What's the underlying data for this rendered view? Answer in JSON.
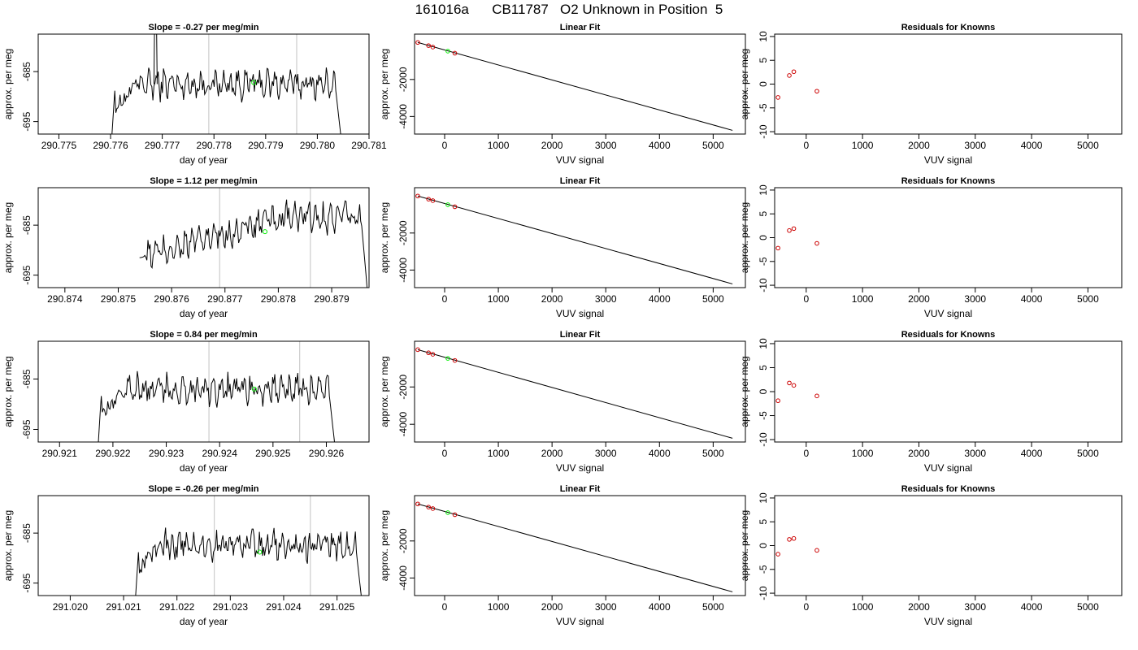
{
  "figure_title": "161016a      CB11787   O2 Unknown in Position  5",
  "colors": {
    "trace": "#000000",
    "unknown_point": "#00ee00",
    "known_point": "#cc0000",
    "marker_line": "#cccccc",
    "fit_line": "#000000"
  },
  "chart_data": [
    {
      "id": "r1-time",
      "type": "line",
      "title": "Slope =  -0.27  per meg/min",
      "xlabel": "day of year",
      "ylabel": "approx. per meg",
      "xticks": [
        "290.775",
        "290.776",
        "290.777",
        "290.778",
        "290.779",
        "290.780",
        "290.781"
      ],
      "xtick_values": [
        290.775,
        290.776,
        290.777,
        290.778,
        290.779,
        290.78,
        290.781
      ],
      "yticks": [
        "-695",
        "-685"
      ],
      "ytick_values": [
        -695,
        -685
      ],
      "xlim": [
        290.7746,
        290.781
      ],
      "ylim": [
        -697.5,
        -677.5
      ],
      "vlines": [
        290.7779,
        290.7796
      ],
      "trace": {
        "x_start": 290.776,
        "x_end": 290.7805,
        "level": -687.5,
        "ramp_from": -702,
        "drop_to": -702
      },
      "spike": {
        "x": 290.77687,
        "y": -672
      },
      "unknown_point": {
        "x": 290.77877,
        "y": -687.2
      }
    },
    {
      "id": "r1-fit",
      "type": "scatter",
      "title": "Linear Fit",
      "xlabel": "VUV signal",
      "ylabel": "approx. per meg",
      "xticks": [
        "0",
        "1000",
        "2000",
        "3000",
        "4000",
        "5000"
      ],
      "xtick_values": [
        0,
        1000,
        2000,
        3000,
        4000,
        5000
      ],
      "yticks": [
        "-4000",
        "-2000"
      ],
      "ytick_values": [
        -4000,
        -2000
      ],
      "xlim": [
        -560,
        5600
      ],
      "ylim": [
        -4950,
        450
      ],
      "known_points": [
        {
          "x": -500,
          "y": 0
        },
        {
          "x": -300,
          "y": -170
        },
        {
          "x": -220,
          "y": -250
        },
        {
          "x": 190,
          "y": -580
        }
      ],
      "unknown_points": [
        {
          "x": 60,
          "y": -470
        }
      ],
      "fit_line": [
        {
          "x": -500,
          "y": 0
        },
        {
          "x": 5360,
          "y": -4750
        }
      ]
    },
    {
      "id": "r1-resid",
      "type": "scatter",
      "title": "Residuals for Knowns",
      "xlabel": "VUV signal",
      "ylabel": "approx. per meg",
      "xticks": [
        "0",
        "1000",
        "2000",
        "3000",
        "4000",
        "5000"
      ],
      "xtick_values": [
        0,
        1000,
        2000,
        3000,
        4000,
        5000
      ],
      "yticks": [
        "-10",
        "-5",
        "0",
        "5",
        "10"
      ],
      "ytick_values": [
        -10,
        -5,
        0,
        5,
        10
      ],
      "xlim": [
        -560,
        5600
      ],
      "ylim": [
        -10.5,
        10.5
      ],
      "known_points": [
        {
          "x": -500,
          "y": -2.8
        },
        {
          "x": -300,
          "y": 1.8
        },
        {
          "x": -220,
          "y": 2.6
        },
        {
          "x": 190,
          "y": -1.5
        }
      ]
    },
    {
      "id": "r2-time",
      "type": "line",
      "title": "Slope =  1.12  per meg/min",
      "xlabel": "day of year",
      "ylabel": "approx. per meg",
      "xticks": [
        "290.874",
        "290.875",
        "290.876",
        "290.877",
        "290.878",
        "290.879"
      ],
      "xtick_values": [
        290.874,
        290.875,
        290.876,
        290.877,
        290.878,
        290.879
      ],
      "yticks": [
        "-695",
        "-685"
      ],
      "ytick_values": [
        -695,
        -685
      ],
      "xlim": [
        290.8735,
        290.8797
      ],
      "ylim": [
        -697.5,
        -677.5
      ],
      "vlines": [
        290.8769,
        290.8786
      ],
      "trace": {
        "x_start": 290.8754,
        "x_end": 290.8797,
        "level": -686.5,
        "ramp_from": -691.5,
        "ramp_to": -683.5,
        "drop_to": -702
      },
      "unknown_point": {
        "x": 290.87775,
        "y": -686.3
      }
    },
    {
      "id": "r2-fit",
      "type": "scatter",
      "title": "Linear Fit",
      "xlabel": "VUV signal",
      "ylabel": "approx. per meg",
      "xticks": [
        "0",
        "1000",
        "2000",
        "3000",
        "4000",
        "5000"
      ],
      "xtick_values": [
        0,
        1000,
        2000,
        3000,
        4000,
        5000
      ],
      "yticks": [
        "-4000",
        "-2000"
      ],
      "ytick_values": [
        -4000,
        -2000
      ],
      "xlim": [
        -560,
        5600
      ],
      "ylim": [
        -4950,
        450
      ],
      "known_points": [
        {
          "x": -500,
          "y": 0
        },
        {
          "x": -300,
          "y": -170
        },
        {
          "x": -220,
          "y": -250
        },
        {
          "x": 190,
          "y": -580
        }
      ],
      "unknown_points": [
        {
          "x": 60,
          "y": -470
        }
      ],
      "fit_line": [
        {
          "x": -500,
          "y": 0
        },
        {
          "x": 5360,
          "y": -4750
        }
      ]
    },
    {
      "id": "r2-resid",
      "type": "scatter",
      "title": "Residuals for Knowns",
      "xlabel": "VUV signal",
      "ylabel": "approx. per meg",
      "xticks": [
        "0",
        "1000",
        "2000",
        "3000",
        "4000",
        "5000"
      ],
      "xtick_values": [
        0,
        1000,
        2000,
        3000,
        4000,
        5000
      ],
      "yticks": [
        "-10",
        "-5",
        "0",
        "5",
        "10"
      ],
      "ytick_values": [
        -10,
        -5,
        0,
        5,
        10
      ],
      "xlim": [
        -560,
        5600
      ],
      "ylim": [
        -10.5,
        10.5
      ],
      "known_points": [
        {
          "x": -500,
          "y": -2.2
        },
        {
          "x": -300,
          "y": 1.5
        },
        {
          "x": -220,
          "y": 1.9
        },
        {
          "x": 190,
          "y": -1.2
        }
      ]
    },
    {
      "id": "r3-time",
      "type": "line",
      "title": "Slope =  0.84  per meg/min",
      "xlabel": "day of year",
      "ylabel": "approx. per meg",
      "xticks": [
        "290.921",
        "290.922",
        "290.923",
        "290.924",
        "290.925",
        "290.926"
      ],
      "xtick_values": [
        290.921,
        290.922,
        290.923,
        290.924,
        290.925,
        290.926
      ],
      "yticks": [
        "-695",
        "-685"
      ],
      "ytick_values": [
        -695,
        -685
      ],
      "xlim": [
        290.9206,
        290.9268
      ],
      "ylim": [
        -697.5,
        -677.5
      ],
      "vlines": [
        290.9238,
        290.9255
      ],
      "trace": {
        "x_start": 290.9217,
        "x_end": 290.9262,
        "level": -687.0,
        "ramp_from": -702,
        "drop_to": -702
      },
      "unknown_point": {
        "x": 290.92465,
        "y": -687.0
      }
    },
    {
      "id": "r3-fit",
      "type": "scatter",
      "title": "Linear Fit",
      "xlabel": "VUV signal",
      "ylabel": "approx. per meg",
      "xticks": [
        "0",
        "1000",
        "2000",
        "3000",
        "4000",
        "5000"
      ],
      "xtick_values": [
        0,
        1000,
        2000,
        3000,
        4000,
        5000
      ],
      "yticks": [
        "-4000",
        "-2000"
      ],
      "ytick_values": [
        -4000,
        -2000
      ],
      "xlim": [
        -560,
        5600
      ],
      "ylim": [
        -4950,
        450
      ],
      "known_points": [
        {
          "x": -500,
          "y": 0
        },
        {
          "x": -300,
          "y": -170
        },
        {
          "x": -220,
          "y": -250
        },
        {
          "x": 190,
          "y": -580
        }
      ],
      "unknown_points": [
        {
          "x": 60,
          "y": -470
        }
      ],
      "fit_line": [
        {
          "x": -500,
          "y": 0
        },
        {
          "x": 5360,
          "y": -4750
        }
      ]
    },
    {
      "id": "r3-resid",
      "type": "scatter",
      "title": "Residuals for Knowns",
      "xlabel": "VUV signal",
      "ylabel": "approx. per meg",
      "xticks": [
        "0",
        "1000",
        "2000",
        "3000",
        "4000",
        "5000"
      ],
      "xtick_values": [
        0,
        1000,
        2000,
        3000,
        4000,
        5000
      ],
      "yticks": [
        "-10",
        "-5",
        "0",
        "5",
        "10"
      ],
      "ytick_values": [
        -10,
        -5,
        0,
        5,
        10
      ],
      "xlim": [
        -560,
        5600
      ],
      "ylim": [
        -10.5,
        10.5
      ],
      "known_points": [
        {
          "x": -500,
          "y": -1.9
        },
        {
          "x": -300,
          "y": 1.8
        },
        {
          "x": -220,
          "y": 1.3
        },
        {
          "x": 190,
          "y": -0.9
        }
      ]
    },
    {
      "id": "r4-time",
      "type": "line",
      "title": "Slope =  -0.26  per meg/min",
      "xlabel": "day of year",
      "ylabel": "approx. per meg",
      "xticks": [
        "291.020",
        "291.021",
        "291.022",
        "291.023",
        "291.024",
        "291.025"
      ],
      "xtick_values": [
        291.02,
        291.021,
        291.022,
        291.023,
        291.024,
        291.025
      ],
      "yticks": [
        "-695",
        "-685"
      ],
      "ytick_values": [
        -695,
        -685
      ],
      "xlim": [
        291.0194,
        291.0256
      ],
      "ylim": [
        -697.5,
        -677.5
      ],
      "vlines": [
        291.0227,
        291.0245
      ],
      "trace": {
        "x_start": 291.0212,
        "x_end": 291.0255,
        "level": -687.5,
        "ramp_from": -702,
        "drop_to": -702
      },
      "unknown_point": {
        "x": 291.02355,
        "y": -688.8
      }
    },
    {
      "id": "r4-fit",
      "type": "scatter",
      "title": "Linear Fit",
      "xlabel": "VUV signal",
      "ylabel": "approx. per meg",
      "xticks": [
        "0",
        "1000",
        "2000",
        "3000",
        "4000",
        "5000"
      ],
      "xtick_values": [
        0,
        1000,
        2000,
        3000,
        4000,
        5000
      ],
      "yticks": [
        "-4000",
        "-2000"
      ],
      "ytick_values": [
        -4000,
        -2000
      ],
      "xlim": [
        -560,
        5600
      ],
      "ylim": [
        -4950,
        450
      ],
      "known_points": [
        {
          "x": -500,
          "y": 0
        },
        {
          "x": -300,
          "y": -170
        },
        {
          "x": -220,
          "y": -250
        },
        {
          "x": 190,
          "y": -580
        }
      ],
      "unknown_points": [
        {
          "x": 60,
          "y": -470
        }
      ],
      "fit_line": [
        {
          "x": -500,
          "y": 0
        },
        {
          "x": 5360,
          "y": -4750
        }
      ]
    },
    {
      "id": "r4-resid",
      "type": "scatter",
      "title": "Residuals for Knowns",
      "xlabel": "VUV signal",
      "ylabel": "approx. per meg",
      "xticks": [
        "0",
        "1000",
        "2000",
        "3000",
        "4000",
        "5000"
      ],
      "xtick_values": [
        0,
        1000,
        2000,
        3000,
        4000,
        5000
      ],
      "yticks": [
        "-10",
        "-5",
        "0",
        "5",
        "10"
      ],
      "ytick_values": [
        -10,
        -5,
        0,
        5,
        10
      ],
      "xlim": [
        -560,
        5600
      ],
      "ylim": [
        -10.5,
        10.5
      ],
      "known_points": [
        {
          "x": -500,
          "y": -1.8
        },
        {
          "x": -300,
          "y": 1.3
        },
        {
          "x": -220,
          "y": 1.5
        },
        {
          "x": 190,
          "y": -1.0
        }
      ]
    }
  ]
}
